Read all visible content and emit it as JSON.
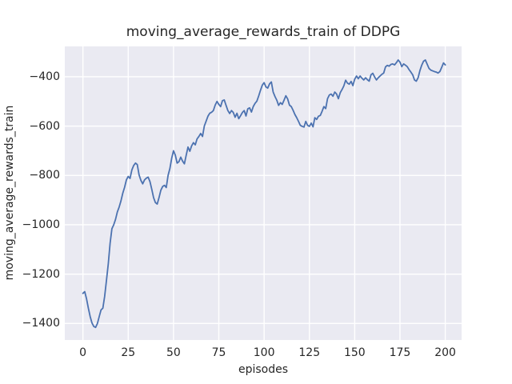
{
  "figure": {
    "title": "moving_average_rewards_train of DDPG",
    "xlabel": "episodes",
    "ylabel": "moving_average_rewards_train",
    "x_tick_labels": [
      "0",
      "25",
      "50",
      "75",
      "100",
      "125",
      "150",
      "175",
      "200"
    ],
    "y_tick_labels": [
      "−400",
      "−600",
      "−800",
      "−1000",
      "−1200",
      "−1400"
    ],
    "colors": {
      "figure_bg": "#ffffff",
      "axes_bg": "#eaeaf2",
      "grid": "#ffffff",
      "line": "#4c72b0",
      "text": "#262626"
    }
  },
  "chart_data": {
    "type": "line",
    "title": "moving_average_rewards_train of DDPG",
    "xlabel": "episodes",
    "ylabel": "moving_average_rewards_train",
    "xlim": [
      -10,
      209
    ],
    "ylim": [
      -1467,
      -277
    ],
    "x_ticks": [
      0,
      25,
      50,
      75,
      100,
      125,
      150,
      175,
      200
    ],
    "y_ticks": [
      -400,
      -600,
      -800,
      -1000,
      -1200,
      -1400
    ],
    "grid": true,
    "legend": false,
    "series": [
      {
        "name": "moving_average_rewards_train",
        "color": "#4c72b0",
        "points": [
          [
            0,
            -1278
          ],
          [
            1,
            -1271
          ],
          [
            2,
            -1300
          ],
          [
            3,
            -1338
          ],
          [
            4,
            -1372
          ],
          [
            5,
            -1398
          ],
          [
            6,
            -1412
          ],
          [
            7,
            -1416
          ],
          [
            8,
            -1400
          ],
          [
            9,
            -1372
          ],
          [
            10,
            -1345
          ],
          [
            11,
            -1338
          ],
          [
            12,
            -1290
          ],
          [
            13,
            -1225
          ],
          [
            14,
            -1158
          ],
          [
            15,
            -1075
          ],
          [
            16,
            -1016
          ],
          [
            17,
            -1000
          ],
          [
            18,
            -978
          ],
          [
            19,
            -948
          ],
          [
            20,
            -928
          ],
          [
            21,
            -903
          ],
          [
            22,
            -872
          ],
          [
            23,
            -848
          ],
          [
            24,
            -818
          ],
          [
            25,
            -804
          ],
          [
            26,
            -812
          ],
          [
            27,
            -778
          ],
          [
            28,
            -760
          ],
          [
            29,
            -750
          ],
          [
            30,
            -756
          ],
          [
            31,
            -798
          ],
          [
            32,
            -820
          ],
          [
            33,
            -834
          ],
          [
            34,
            -818
          ],
          [
            35,
            -811
          ],
          [
            36,
            -807
          ],
          [
            37,
            -825
          ],
          [
            38,
            -856
          ],
          [
            39,
            -890
          ],
          [
            40,
            -910
          ],
          [
            41,
            -916
          ],
          [
            42,
            -890
          ],
          [
            43,
            -860
          ],
          [
            44,
            -845
          ],
          [
            45,
            -840
          ],
          [
            46,
            -849
          ],
          [
            47,
            -800
          ],
          [
            48,
            -772
          ],
          [
            49,
            -730
          ],
          [
            50,
            -700
          ],
          [
            51,
            -718
          ],
          [
            52,
            -750
          ],
          [
            53,
            -744
          ],
          [
            54,
            -726
          ],
          [
            55,
            -742
          ],
          [
            56,
            -753
          ],
          [
            57,
            -718
          ],
          [
            58,
            -685
          ],
          [
            59,
            -702
          ],
          [
            60,
            -680
          ],
          [
            61,
            -667
          ],
          [
            62,
            -676
          ],
          [
            63,
            -652
          ],
          [
            64,
            -642
          ],
          [
            65,
            -630
          ],
          [
            66,
            -642
          ],
          [
            67,
            -600
          ],
          [
            68,
            -580
          ],
          [
            69,
            -560
          ],
          [
            70,
            -548
          ],
          [
            71,
            -544
          ],
          [
            72,
            -537
          ],
          [
            73,
            -515
          ],
          [
            74,
            -500
          ],
          [
            75,
            -512
          ],
          [
            76,
            -521
          ],
          [
            77,
            -497
          ],
          [
            78,
            -494
          ],
          [
            79,
            -516
          ],
          [
            80,
            -537
          ],
          [
            81,
            -549
          ],
          [
            82,
            -537
          ],
          [
            83,
            -545
          ],
          [
            84,
            -564
          ],
          [
            85,
            -548
          ],
          [
            86,
            -570
          ],
          [
            87,
            -558
          ],
          [
            88,
            -545
          ],
          [
            89,
            -537
          ],
          [
            90,
            -559
          ],
          [
            91,
            -530
          ],
          [
            92,
            -526
          ],
          [
            93,
            -543
          ],
          [
            94,
            -521
          ],
          [
            95,
            -508
          ],
          [
            96,
            -499
          ],
          [
            97,
            -478
          ],
          [
            98,
            -455
          ],
          [
            99,
            -434
          ],
          [
            100,
            -424
          ],
          [
            101,
            -441
          ],
          [
            102,
            -446
          ],
          [
            103,
            -429
          ],
          [
            104,
            -421
          ],
          [
            105,
            -462
          ],
          [
            106,
            -480
          ],
          [
            107,
            -495
          ],
          [
            108,
            -516
          ],
          [
            109,
            -505
          ],
          [
            110,
            -512
          ],
          [
            111,
            -495
          ],
          [
            112,
            -477
          ],
          [
            113,
            -490
          ],
          [
            114,
            -515
          ],
          [
            115,
            -521
          ],
          [
            116,
            -536
          ],
          [
            117,
            -553
          ],
          [
            118,
            -566
          ],
          [
            119,
            -581
          ],
          [
            120,
            -597
          ],
          [
            121,
            -601
          ],
          [
            122,
            -604
          ],
          [
            123,
            -581
          ],
          [
            124,
            -597
          ],
          [
            125,
            -601
          ],
          [
            126,
            -588
          ],
          [
            127,
            -603
          ],
          [
            128,
            -566
          ],
          [
            129,
            -573
          ],
          [
            130,
            -560
          ],
          [
            131,
            -557
          ],
          [
            132,
            -540
          ],
          [
            133,
            -521
          ],
          [
            134,
            -529
          ],
          [
            135,
            -489
          ],
          [
            136,
            -474
          ],
          [
            137,
            -470
          ],
          [
            138,
            -479
          ],
          [
            139,
            -462
          ],
          [
            140,
            -470
          ],
          [
            141,
            -489
          ],
          [
            142,
            -465
          ],
          [
            143,
            -452
          ],
          [
            144,
            -437
          ],
          [
            145,
            -414
          ],
          [
            146,
            -426
          ],
          [
            147,
            -430
          ],
          [
            148,
            -419
          ],
          [
            149,
            -436
          ],
          [
            150,
            -410
          ],
          [
            151,
            -397
          ],
          [
            152,
            -408
          ],
          [
            153,
            -397
          ],
          [
            154,
            -406
          ],
          [
            155,
            -413
          ],
          [
            156,
            -404
          ],
          [
            157,
            -412
          ],
          [
            158,
            -418
          ],
          [
            159,
            -392
          ],
          [
            160,
            -386
          ],
          [
            161,
            -401
          ],
          [
            162,
            -413
          ],
          [
            163,
            -404
          ],
          [
            164,
            -397
          ],
          [
            165,
            -390
          ],
          [
            166,
            -385
          ],
          [
            167,
            -360
          ],
          [
            168,
            -354
          ],
          [
            169,
            -357
          ],
          [
            170,
            -350
          ],
          [
            171,
            -348
          ],
          [
            172,
            -352
          ],
          [
            173,
            -343
          ],
          [
            174,
            -332
          ],
          [
            175,
            -341
          ],
          [
            176,
            -359
          ],
          [
            177,
            -348
          ],
          [
            178,
            -353
          ],
          [
            179,
            -359
          ],
          [
            180,
            -371
          ],
          [
            181,
            -381
          ],
          [
            182,
            -392
          ],
          [
            183,
            -413
          ],
          [
            184,
            -418
          ],
          [
            185,
            -404
          ],
          [
            186,
            -375
          ],
          [
            187,
            -353
          ],
          [
            188,
            -337
          ],
          [
            189,
            -332
          ],
          [
            190,
            -349
          ],
          [
            191,
            -366
          ],
          [
            192,
            -373
          ],
          [
            193,
            -376
          ],
          [
            194,
            -379
          ],
          [
            195,
            -381
          ],
          [
            196,
            -385
          ],
          [
            197,
            -379
          ],
          [
            198,
            -362
          ],
          [
            199,
            -344
          ],
          [
            200,
            -352
          ]
        ]
      }
    ]
  }
}
